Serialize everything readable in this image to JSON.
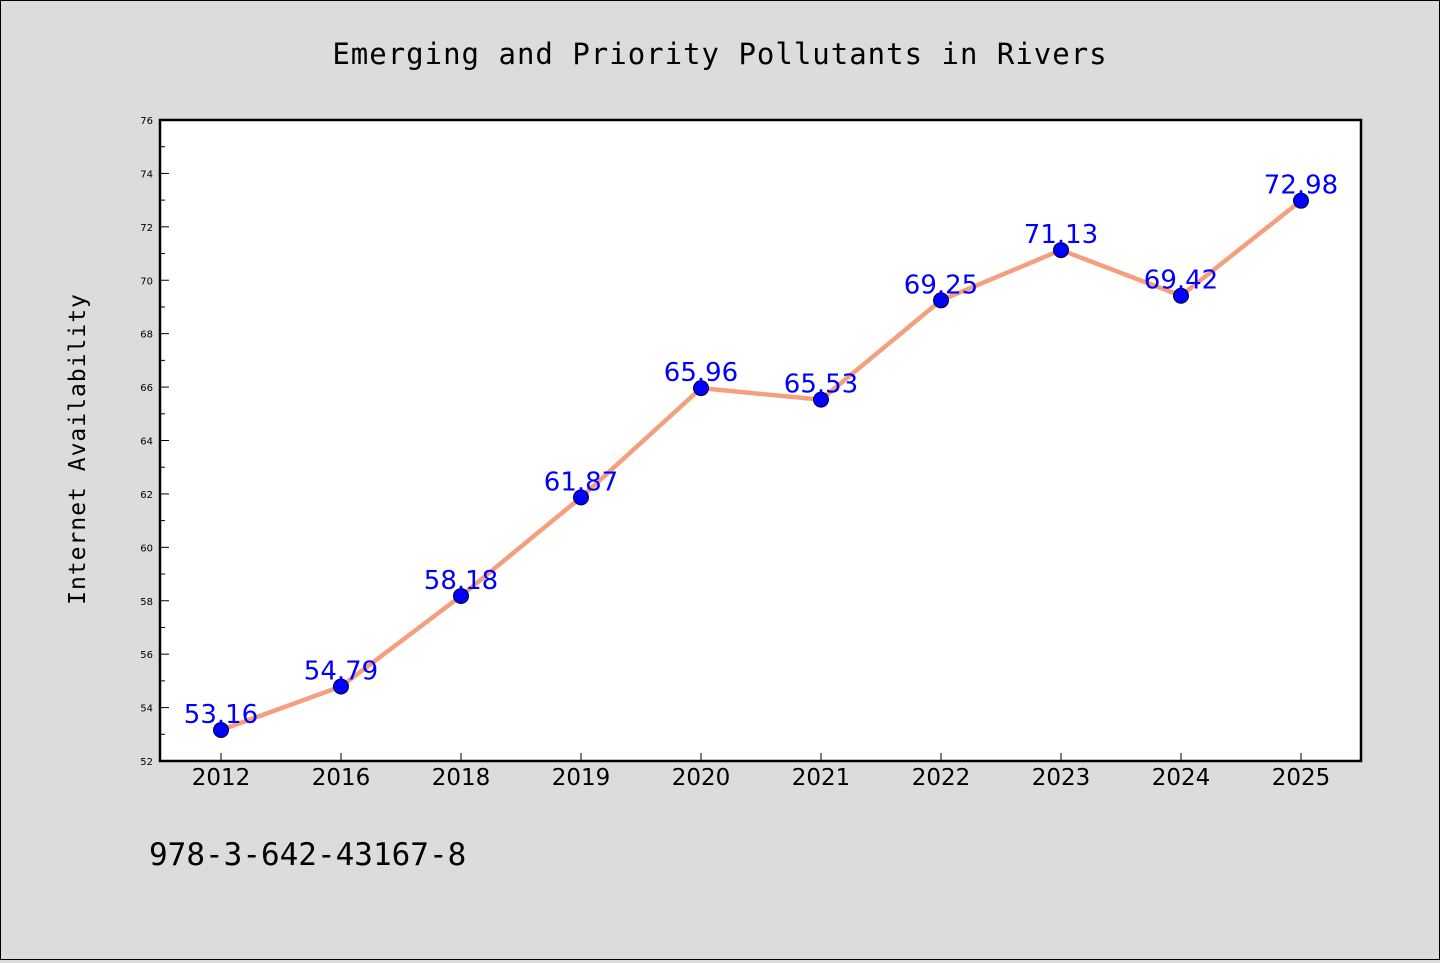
{
  "chart_data": {
    "type": "line",
    "title": "Emerging and Priority Pollutants in Rivers",
    "xlabel": "",
    "ylabel": "Internet Availability",
    "categories": [
      "2012",
      "2016",
      "2018",
      "2019",
      "2020",
      "2021",
      "2022",
      "2023",
      "2024",
      "2025"
    ],
    "values": [
      53.16,
      54.79,
      58.18,
      61.87,
      65.96,
      65.53,
      69.25,
      71.13,
      69.42,
      72.98
    ],
    "data_labels": [
      "53.16",
      "54.79",
      "58.18",
      "61.87",
      "65.96",
      "65.53",
      "69.25",
      "71.13",
      "69.42",
      "72.98"
    ],
    "ylim": [
      52,
      76
    ],
    "y_ticks": [
      52,
      54,
      56,
      58,
      60,
      62,
      64,
      66,
      68,
      70,
      72,
      74,
      76
    ],
    "y_tick_labels": [
      "52",
      "54",
      "56",
      "58",
      "60",
      "62",
      "64",
      "66",
      "68",
      "70",
      "72",
      "74",
      "76"
    ],
    "grid": false,
    "legend": "none",
    "colors": {
      "line": "#f4a07e",
      "marker": "#0000ff",
      "data_label": "#0000ff",
      "background": "#dcdcdc",
      "plot_background": "#ffffff"
    }
  },
  "footnote": "978-3-642-43167-8"
}
